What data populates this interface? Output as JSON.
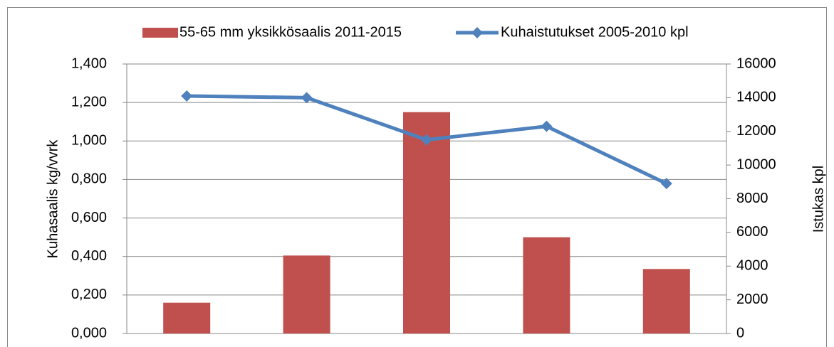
{
  "chart_data": {
    "type": "bar-line",
    "categories": [
      null,
      null,
      null,
      null,
      null
    ],
    "series": [
      {
        "name": "55-65 mm yksikkösaalis 2011-2015",
        "type": "bar",
        "color": "#c0504d",
        "values": [
          0.16,
          0.405,
          1.15,
          0.5,
          0.335
        ]
      },
      {
        "name": "Kuhaistutukset 2005-2010 kpl",
        "type": "line",
        "color": "#4f81bd",
        "axis": "y2",
        "values": [
          14100,
          14000,
          11500,
          12300,
          8900
        ]
      }
    ],
    "ylabel": "Kuhasaalis kg/vvrk",
    "y2label": "Istukas kpl",
    "ylim": [
      0,
      1.4
    ],
    "yticks": [
      {
        "value": 0,
        "label": "0,000"
      },
      {
        "value": 0.2,
        "label": "0,200"
      },
      {
        "value": 0.4,
        "label": "0,400"
      },
      {
        "value": 0.6,
        "label": "0,600"
      },
      {
        "value": 0.8,
        "label": "0,800"
      },
      {
        "value": 1.0,
        "label": "1,000"
      },
      {
        "value": 1.2,
        "label": "1,200"
      },
      {
        "value": 1.4,
        "label": "1,400"
      }
    ],
    "y2lim": [
      0,
      16000
    ],
    "y2ticks": [
      0,
      2000,
      4000,
      6000,
      8000,
      10000,
      12000,
      14000,
      16000
    ],
    "grid": true,
    "legend": "top"
  }
}
